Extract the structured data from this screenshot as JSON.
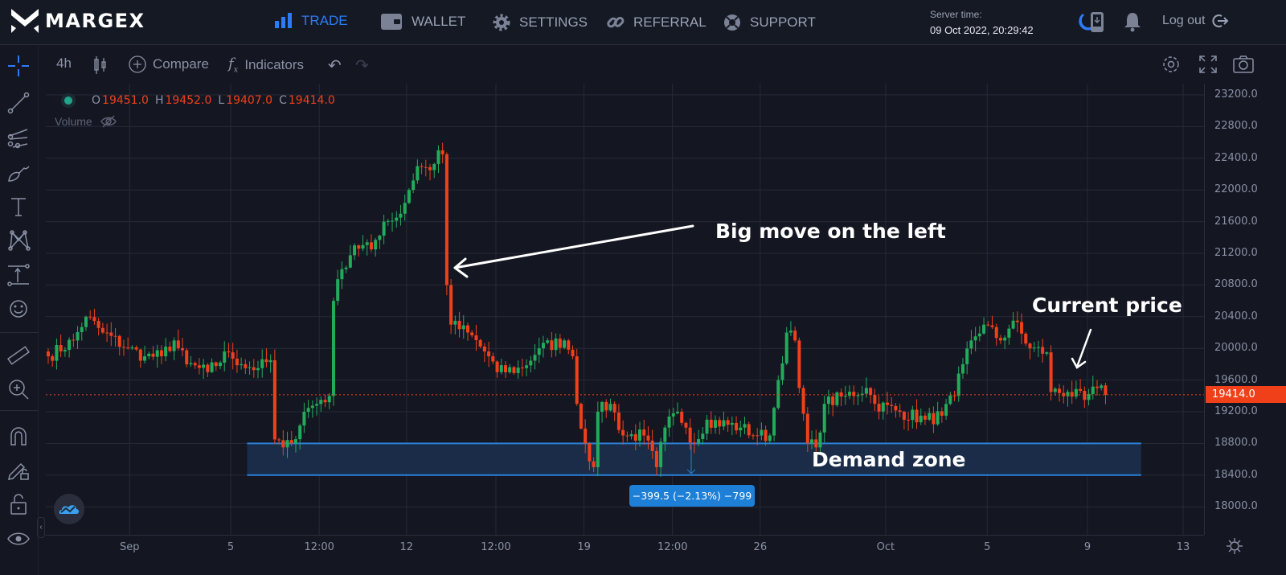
{
  "header": {
    "brand": "MARGEX",
    "nav": [
      {
        "label": "TRADE",
        "icon": "bar-chart-icon",
        "active": true
      },
      {
        "label": "WALLET",
        "icon": "wallet-icon"
      },
      {
        "label": "SETTINGS",
        "icon": "gear-icon"
      },
      {
        "label": "REFERRAL",
        "icon": "link-icon"
      },
      {
        "label": "SUPPORT",
        "icon": "lifebuoy-icon"
      }
    ],
    "server_time_label": "Server time:",
    "server_time": "09 Oct 2022, 20:29:42",
    "logout": "Log out"
  },
  "toolbar": {
    "interval": "4h",
    "compare": "Compare",
    "indicators": "Indicators"
  },
  "legend": {
    "o_label": "O",
    "o": "19451.0",
    "h_label": "H",
    "h": "19452.0",
    "l_label": "L",
    "l": "19407.0",
    "c_label": "C",
    "c": "19414.0",
    "volume": "Volume"
  },
  "annotations": {
    "big_move": "Big move on the left",
    "current_price": "Current price",
    "demand_zone": "Demand zone",
    "measure": "−399.5 (−2.13%) −799"
  },
  "colors": {
    "up": "#22ab5a",
    "down": "#f0401a",
    "accent": "#2d7cf6",
    "zone": "#1a2c48",
    "zone_border": "#2a80d8"
  },
  "chart_data": {
    "type": "candlestick",
    "symbol_interval": "4h",
    "ylim": [
      17760,
      23360
    ],
    "yticks": [
      "23200.0",
      "22800.0",
      "22400.0",
      "22000.0",
      "21600.0",
      "21200.0",
      "20800.0",
      "20400.0",
      "20000.0",
      "19600.0",
      "19200.0",
      "18800.0",
      "18400.0",
      "18000.0"
    ],
    "xticks": [
      {
        "label": "Sep",
        "i": 19.4
      },
      {
        "label": "5",
        "i": 43.5
      },
      {
        "label": "12:00",
        "i": 64.6
      },
      {
        "label": "12",
        "i": 85.4
      },
      {
        "label": "12:00",
        "i": 106.7
      },
      {
        "label": "19",
        "i": 127.7
      },
      {
        "label": "12:00",
        "i": 148.8
      },
      {
        "label": "26",
        "i": 169.7
      },
      {
        "label": "Oct",
        "i": 199.6
      },
      {
        "label": "5",
        "i": 223.8
      },
      {
        "label": "9",
        "i": 247.7
      },
      {
        "label": "13",
        "i": 270.5
      }
    ],
    "candle_count": 253,
    "close_keyframes": [
      [
        0,
        19900
      ],
      [
        6,
        20100
      ],
      [
        9,
        20400
      ],
      [
        13,
        20200
      ],
      [
        19,
        20000
      ],
      [
        23,
        19900
      ],
      [
        27,
        19900
      ],
      [
        30,
        20100
      ],
      [
        33,
        19800
      ],
      [
        38,
        19700
      ],
      [
        43,
        19950
      ],
      [
        46,
        19800
      ],
      [
        50,
        19750
      ],
      [
        53,
        19850
      ],
      [
        54,
        18850
      ],
      [
        56,
        18750
      ],
      [
        58,
        18800
      ],
      [
        61,
        19200
      ],
      [
        65,
        19350
      ],
      [
        67,
        19400
      ],
      [
        68,
        20600
      ],
      [
        70,
        21000
      ],
      [
        73,
        21300
      ],
      [
        77,
        21250
      ],
      [
        80,
        21600
      ],
      [
        84,
        21700
      ],
      [
        86,
        22000
      ],
      [
        88,
        22300
      ],
      [
        91,
        22250
      ],
      [
        93,
        22500
      ],
      [
        94,
        22450
      ],
      [
        95,
        20800
      ],
      [
        96,
        20300
      ],
      [
        100,
        20200
      ],
      [
        105,
        19900
      ],
      [
        107,
        19700
      ],
      [
        113,
        19750
      ],
      [
        117,
        20000
      ],
      [
        123,
        20100
      ],
      [
        125,
        19900
      ],
      [
        126,
        19300
      ],
      [
        128,
        18800
      ],
      [
        130,
        18500
      ],
      [
        131,
        19200
      ],
      [
        134,
        19300
      ],
      [
        137,
        18900
      ],
      [
        142,
        18900
      ],
      [
        145,
        18500
      ],
      [
        147,
        19000
      ],
      [
        150,
        19200
      ],
      [
        152,
        19000
      ],
      [
        154,
        18800
      ],
      [
        157,
        19100
      ],
      [
        165,
        19000
      ],
      [
        169,
        18900
      ],
      [
        172,
        18900
      ],
      [
        174,
        19600
      ],
      [
        176,
        20200
      ],
      [
        178,
        20100
      ],
      [
        179,
        19500
      ],
      [
        181,
        18800
      ],
      [
        183,
        18750
      ],
      [
        185,
        19300
      ],
      [
        190,
        19400
      ],
      [
        195,
        19500
      ],
      [
        197,
        19300
      ],
      [
        203,
        19200
      ],
      [
        209,
        19100
      ],
      [
        213,
        19150
      ],
      [
        216,
        19400
      ],
      [
        218,
        19800
      ],
      [
        220,
        20100
      ],
      [
        223,
        20300
      ],
      [
        227,
        20100
      ],
      [
        230,
        20350
      ],
      [
        234,
        20000
      ],
      [
        238,
        19950
      ],
      [
        239,
        19450
      ],
      [
        243,
        19450
      ],
      [
        247,
        19350
      ],
      [
        250,
        19500
      ],
      [
        252,
        19414
      ]
    ],
    "last_price": "19414.0",
    "demand_zone": {
      "from_price": 18400,
      "to_price": 18800,
      "from_i": 47.4,
      "to_i": 260.5
    },
    "measure": {
      "change": -399.5,
      "percent": -2.13,
      "ticks": -799
    }
  }
}
